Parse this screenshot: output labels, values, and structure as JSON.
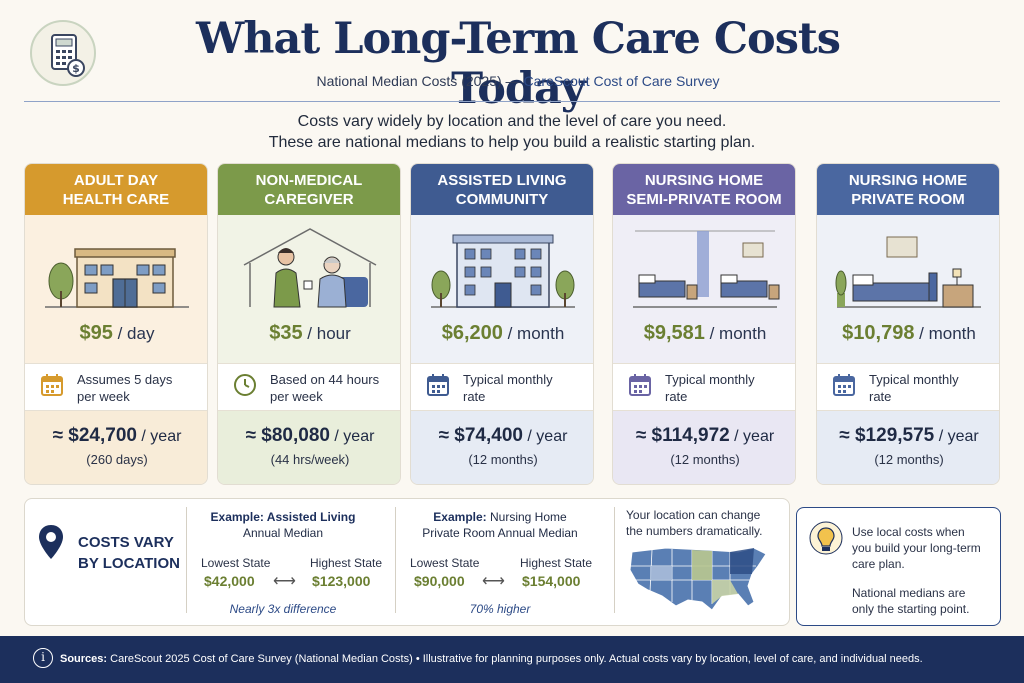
{
  "header": {
    "title": "What Long-Term Care Costs Today",
    "subtitle_prefix": "National Median Costs (2025) — ",
    "subtitle_source": "CareScout Cost of Care Survey"
  },
  "intro": {
    "line1": "Costs vary widely by location and the level of care you need.",
    "line2": "These are national medians to help you build a realistic starting plan."
  },
  "colors": {
    "adult_day": "#d69a2d",
    "caregiver": "#7c9a4a",
    "assisted": "#3f5b91",
    "nh_semi": "#6a64a4",
    "nh_private": "#4a67a0",
    "price_green": "#6b7f32",
    "navy": "#1c2f5c"
  },
  "cards": [
    {
      "title_line1": "ADULT DAY",
      "title_line2": "HEALTH CARE",
      "price": "$95",
      "unit": " / day",
      "note_line1": "Assumes 5 days",
      "note_line2": "per week",
      "note_icon": "calendar-icon",
      "year_amount": "≈ $24,700",
      "year_unit": " / year",
      "year_sub": "(260 days)"
    },
    {
      "title_line1": "NON-MEDICAL",
      "title_line2": "CAREGIVER",
      "price": "$35",
      "unit": " / hour",
      "note_line1": "Based on 44 hours",
      "note_line2": "per week",
      "note_icon": "clock-icon",
      "year_amount": "≈ $80,080",
      "year_unit": " / year",
      "year_sub": "(44 hrs/week)"
    },
    {
      "title_line1": "ASSISTED LIVING",
      "title_line2": "COMMUNITY",
      "price": "$6,200",
      "unit": " / month",
      "note_line1": "Typical monthly",
      "note_line2": "rate",
      "note_icon": "calendar-icon",
      "year_amount": "≈ $74,400",
      "year_unit": " / year",
      "year_sub": "(12 months)"
    },
    {
      "title_line1": "NURSING HOME",
      "title_line2": "SEMI-PRIVATE ROOM",
      "price": "$9,581",
      "unit": " / month",
      "note_line1": "Typical monthly",
      "note_line2": "rate",
      "note_icon": "calendar-icon",
      "year_amount": "≈ $114,972",
      "year_unit": " / year",
      "year_sub": "(12 months)"
    },
    {
      "title_line1": "NURSING HOME",
      "title_line2": "PRIVATE ROOM",
      "price": "$10,798",
      "unit": " / month",
      "note_line1": "Typical monthly",
      "note_line2": "rate",
      "note_icon": "calendar-icon",
      "year_amount": "≈ $129,575",
      "year_unit": " / year",
      "year_sub": "(12 months)"
    }
  ],
  "location": {
    "label_line1": "COSTS VARY",
    "label_line2": "BY LOCATION",
    "example1": {
      "title_bold": "Example: Assisted Living",
      "title_line2": "Annual Median",
      "low_label": "Lowest State",
      "high_label": "Highest State",
      "low_value": "$42,000",
      "high_value": "$123,000",
      "arrow": "⟷",
      "foot": "Nearly 3x difference"
    },
    "example2": {
      "title_bold": "Example:",
      "title_rest": " Nursing Home",
      "title_line2": "Private Room Annual Median",
      "low_label": "Lowest State",
      "high_label": "Highest State",
      "low_value": "$90,000",
      "high_value": "$154,000",
      "arrow": "⟷",
      "foot": "70% higher"
    },
    "map_note_line1": "Your location can change",
    "map_note_line2": "the numbers dramatically."
  },
  "tip": {
    "line1": "Use local costs when",
    "line2": "you build your long-term",
    "line3": "care plan.",
    "line4": "National medians are",
    "line5": "only the starting point."
  },
  "footer": {
    "sources_label": "Sources:",
    "sources_text": " CareScout 2025 Cost of Care Survey (National Median Costs)  •   Illustrative for planning purposes only. Actual costs vary by location, level of care, and individual needs.",
    "info_glyph": "i"
  }
}
